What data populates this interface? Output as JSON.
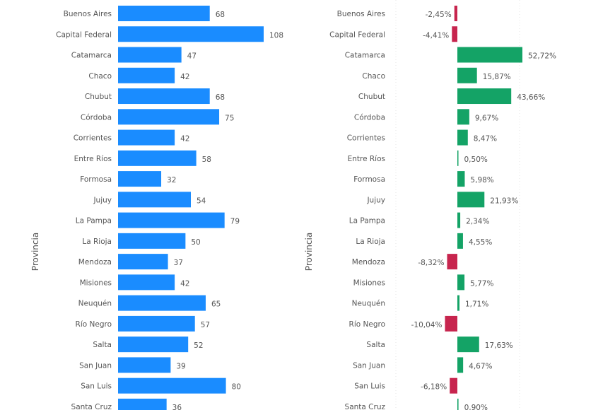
{
  "chart_data": [
    {
      "type": "bar",
      "orientation": "horizontal",
      "ylabel": "Provincia",
      "categories": [
        "Buenos Aires",
        "Capital Federal",
        "Catamarca",
        "Chaco",
        "Chubut",
        "Córdoba",
        "Corrientes",
        "Entre Ríos",
        "Formosa",
        "Jujuy",
        "La Pampa",
        "La Rioja",
        "Mendoza",
        "Misiones",
        "Neuquén",
        "Río Negro",
        "Salta",
        "San Juan",
        "San Luis",
        "Santa Cruz"
      ],
      "values": [
        68,
        108,
        47,
        42,
        68,
        75,
        42,
        58,
        32,
        54,
        79,
        50,
        37,
        42,
        65,
        57,
        52,
        39,
        80,
        36
      ],
      "labels": [
        "68",
        "108",
        "47",
        "42",
        "68",
        "75",
        "42",
        "58",
        "32",
        "54",
        "79",
        "50",
        "37",
        "42",
        "65",
        "57",
        "52",
        "39",
        "80",
        "36"
      ],
      "color": "#1a8cff"
    },
    {
      "type": "bar",
      "orientation": "horizontal",
      "ylabel": "Provincia",
      "categories": [
        "Buenos Aires",
        "Capital Federal",
        "Catamarca",
        "Chaco",
        "Chubut",
        "Córdoba",
        "Corrientes",
        "Entre Ríos",
        "Formosa",
        "Jujuy",
        "La Pampa",
        "La Rioja",
        "Mendoza",
        "Misiones",
        "Neuquén",
        "Río Negro",
        "Salta",
        "San Juan",
        "San Luis",
        "Santa Cruz"
      ],
      "values": [
        -2.45,
        -4.41,
        52.72,
        15.87,
        43.66,
        9.67,
        8.47,
        0.5,
        5.98,
        21.93,
        2.34,
        4.55,
        -8.32,
        5.77,
        1.71,
        -10.04,
        17.63,
        4.67,
        -6.18,
        0.9
      ],
      "labels": [
        "-2,45%",
        "-4,41%",
        "52,72%",
        "15,87%",
        "43,66%",
        "9,67%",
        "8,47%",
        "0,50%",
        "5,98%",
        "21,93%",
        "2,34%",
        "4,55%",
        "-8,32%",
        "5,77%",
        "1,71%",
        "-10,04%",
        "17,63%",
        "4,67%",
        "-6,18%",
        "0,90%"
      ],
      "positive_color": "#14a366",
      "negative_color": "#c7254e"
    }
  ]
}
